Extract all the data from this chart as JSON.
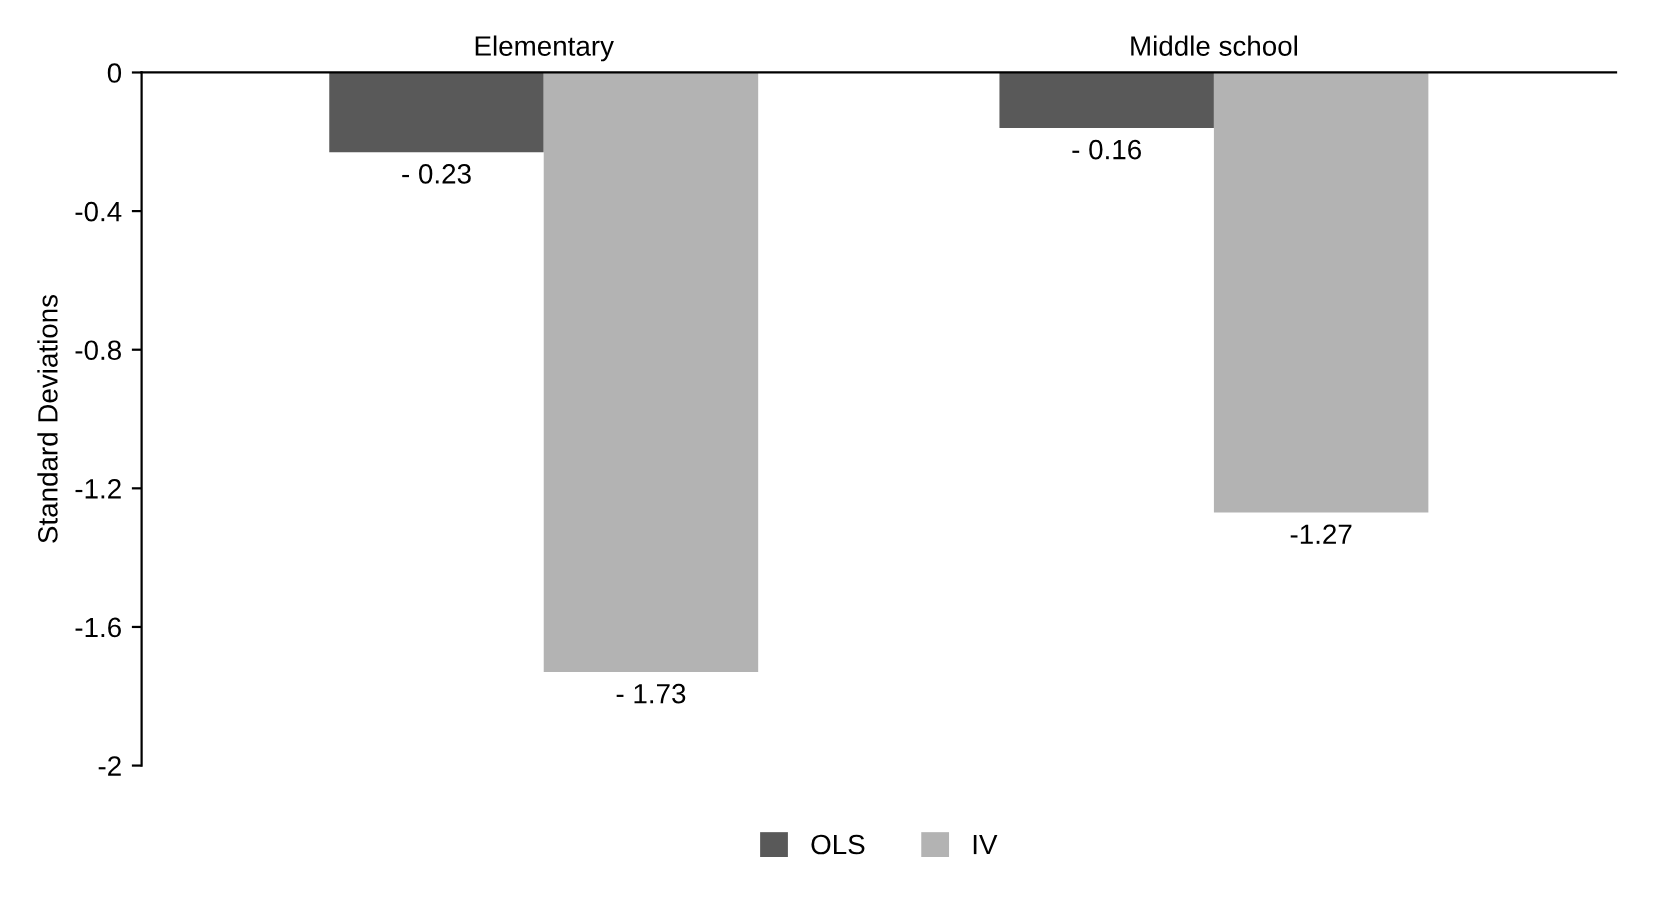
{
  "chart_data": {
    "type": "bar",
    "ylabel": "Standard Deviations",
    "categories": [
      "Elementary",
      "Middle school"
    ],
    "series": [
      {
        "name": "OLS",
        "color": "#595959",
        "values": [
          -0.23,
          -0.16
        ],
        "value_labels": [
          "- 0.23",
          "- 0.16"
        ]
      },
      {
        "name": "IV",
        "color": "#b3b3b3",
        "values": [
          -1.73,
          -1.27
        ],
        "value_labels": [
          "- 1.73",
          "-1.27"
        ]
      }
    ],
    "ylim": [
      -2,
      0
    ],
    "yticks": [
      0,
      {
        "value": -0.4,
        "label": "-0.4"
      },
      {
        "value": -0.8,
        "label": "-0.8"
      },
      {
        "value": -1.2,
        "label": "-1.2"
      },
      {
        "value": -1.6,
        "label": "-1.6"
      },
      {
        "value": -2,
        "label": "-2"
      }
    ],
    "grid": false,
    "legend": "bottom"
  }
}
